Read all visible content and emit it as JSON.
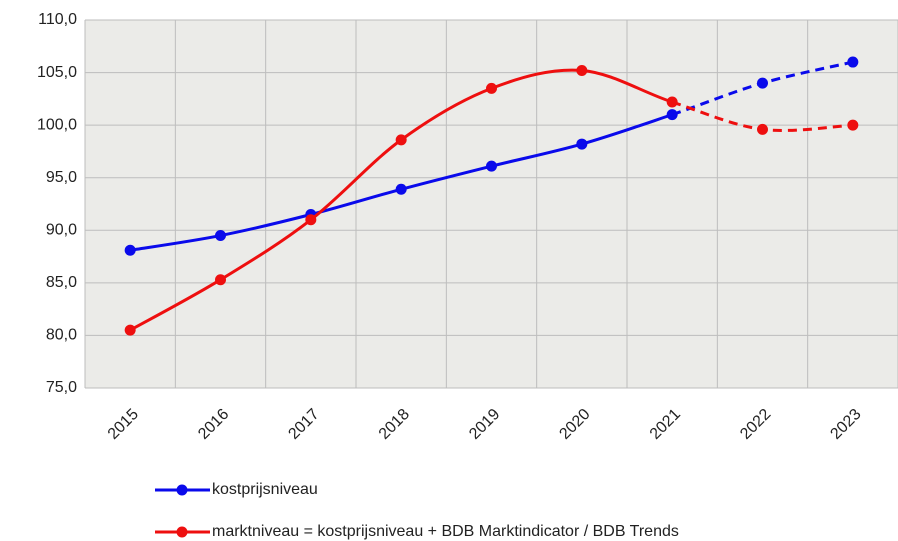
{
  "chart_data": {
    "type": "line",
    "categories": [
      "2015",
      "2016",
      "2017",
      "2018",
      "2019",
      "2020",
      "2021",
      "2022",
      "2023"
    ],
    "series": [
      {
        "name": "kostprijsniveau",
        "color": "#0a0aeb",
        "values": [
          88.1,
          89.5,
          91.5,
          93.9,
          96.1,
          98.2,
          101.0,
          104.0,
          106.0
        ]
      },
      {
        "name": "marktniveau = kostprijsniveau + BDB Marktindicator / BDB Trends",
        "color": "#ee0f0f",
        "values": [
          80.5,
          85.3,
          91.0,
          98.6,
          103.5,
          105.2,
          102.2,
          99.6,
          100.0
        ]
      }
    ],
    "dashed_from": "2021",
    "ylim": [
      75,
      110
    ],
    "yticks": [
      {
        "value": 75,
        "label": "75,0"
      },
      {
        "value": 80,
        "label": "80,0"
      },
      {
        "value": 85,
        "label": "85,0"
      },
      {
        "value": 90,
        "label": "90,0"
      },
      {
        "value": 95,
        "label": "95,0"
      },
      {
        "value": 100,
        "label": "100,0"
      },
      {
        "value": 105,
        "label": "105,0"
      },
      {
        "value": 110,
        "label": "110,0"
      }
    ],
    "grid": true,
    "smooth": true,
    "legend": "bottom"
  }
}
